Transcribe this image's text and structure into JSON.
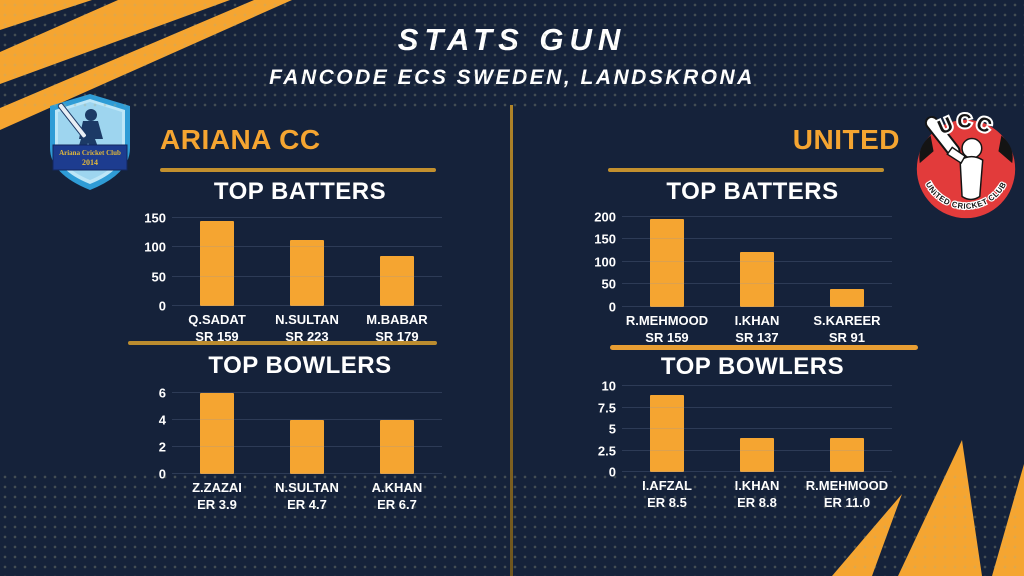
{
  "header": {
    "title": "STATS GUN",
    "subtitle": "FANCODE ECS SWEDEN, LANDSKRONA"
  },
  "teams": [
    {
      "name": "ARIANA CC",
      "logo": {
        "line1": "Ariana Cricket Club",
        "line2": "2014"
      }
    },
    {
      "name": "UNITED",
      "logo": {
        "top": "UCC",
        "bottom": "UNITED CRICKET CLUB"
      }
    }
  ],
  "chart_data": [
    {
      "type": "bar",
      "team": "ARIANA CC",
      "title": "TOP BATTERS",
      "categories": [
        "Q.SADAT",
        "N.SULTAN",
        "M.BABAR"
      ],
      "sublabels": [
        "SR 159",
        "SR 223",
        "SR 179"
      ],
      "values": [
        145,
        112,
        85
      ],
      "yticks": [
        0,
        50,
        100,
        150
      ],
      "ylim": [
        0,
        160
      ],
      "grid": true,
      "legend": "none",
      "bar_color": "#F5A531"
    },
    {
      "type": "bar",
      "team": "ARIANA CC",
      "title": "TOP BOWLERS",
      "categories": [
        "Z.ZAZAI",
        "N.SULTAN",
        "A.KHAN"
      ],
      "sublabels": [
        "ER 3.9",
        "ER 4.7",
        "ER 6.7"
      ],
      "values": [
        6,
        4,
        4
      ],
      "yticks": [
        0,
        2,
        4,
        6
      ],
      "ylim": [
        0,
        6.5
      ],
      "grid": true,
      "legend": "none",
      "bar_color": "#F5A531"
    },
    {
      "type": "bar",
      "team": "UNITED",
      "title": "TOP BATTERS",
      "categories": [
        "R.MEHMOOD",
        "I.KHAN",
        "S.KAREER"
      ],
      "sublabels": [
        "SR 159",
        "SR 137",
        "SR 91"
      ],
      "values": [
        195,
        122,
        40
      ],
      "yticks": [
        0,
        50,
        100,
        150,
        200
      ],
      "ylim": [
        0,
        210
      ],
      "grid": true,
      "legend": "none",
      "bar_color": "#F5A531"
    },
    {
      "type": "bar",
      "team": "UNITED",
      "title": "TOP BOWLERS",
      "categories": [
        "I.AFZAL",
        "I.KHAN",
        "R.MEHMOOD"
      ],
      "sublabels": [
        "ER 8.5",
        "ER 8.8",
        "ER 11.0"
      ],
      "values": [
        9,
        4,
        4
      ],
      "yticks": [
        0,
        2.5,
        5,
        7.5,
        10
      ],
      "ylim": [
        0,
        10.5
      ],
      "grid": true,
      "legend": "none",
      "bar_color": "#F5A531"
    }
  ],
  "colors": {
    "background": "#15223A",
    "accent_orange": "#F5A531",
    "gold_divider": "#BB8C2F",
    "text_white": "#FFFFFF",
    "ucc_red": "#E23B3B",
    "ariana_blue": "#2F9CD6"
  }
}
